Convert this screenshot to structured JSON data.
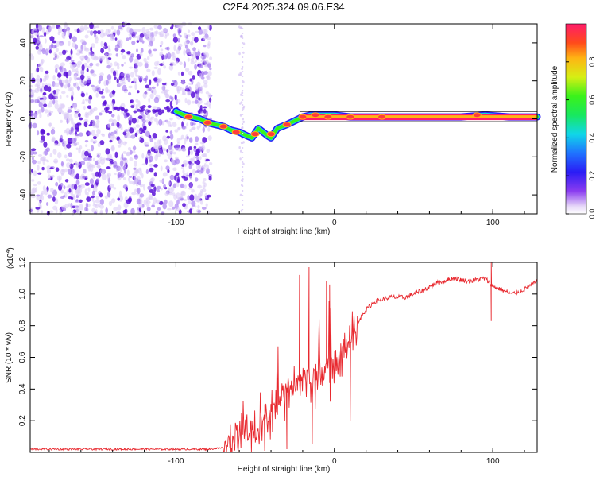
{
  "title": "C2E4.2025.324.09.06.E34",
  "colors": {
    "snr_line": "#e8282e",
    "axis": "#000000",
    "scatter": "#6a1fd8"
  },
  "chart_data": [
    {
      "type": "heatmap",
      "name": "spectrogram",
      "xlabel": "Height of straight line (km)",
      "ylabel": "Frequency (Hz)",
      "xlim": [
        -192,
        128
      ],
      "ylim": [
        -50,
        50
      ],
      "xticks": [
        -100,
        0,
        100
      ],
      "yticks": [
        -40,
        -20,
        0,
        20,
        40
      ],
      "noise_region": [
        -192,
        -78
      ],
      "ridge": [
        [
          -100,
          4
        ],
        [
          -95,
          2
        ],
        [
          -90,
          1
        ],
        [
          -85,
          0
        ],
        [
          -80,
          -2
        ],
        [
          -75,
          -3
        ],
        [
          -70,
          -4
        ],
        [
          -65,
          -6
        ],
        [
          -60,
          -7
        ],
        [
          -55,
          -9
        ],
        [
          -52,
          -10
        ],
        [
          -48,
          -5
        ],
        [
          -45,
          -7
        ],
        [
          -42,
          -9
        ],
        [
          -40,
          -10
        ],
        [
          -36,
          -5
        ],
        [
          -30,
          -3
        ],
        [
          -25,
          -1
        ],
        [
          -20,
          1
        ],
        [
          -15,
          2
        ],
        [
          -10,
          2
        ],
        [
          -5,
          2
        ],
        [
          0,
          2
        ],
        [
          10,
          1
        ],
        [
          20,
          1
        ],
        [
          40,
          1
        ],
        [
          60,
          1
        ],
        [
          80,
          1
        ],
        [
          95,
          2
        ],
        [
          110,
          1
        ],
        [
          128,
          1
        ]
      ],
      "colorbar": {
        "label": "Normalized spectral amplitude",
        "ticks": [
          0.0,
          0.2,
          0.4,
          0.6,
          0.8
        ],
        "tick_labels": [
          "0.0",
          "0.2",
          "0.4",
          "0.6",
          "0.8"
        ],
        "range": [
          0,
          1
        ]
      }
    },
    {
      "type": "line",
      "name": "snr",
      "xlabel": "Height of straight line (km)",
      "ylabel": "SNR (10 * v/v)",
      "y_multiplier": "(x10",
      "y_multiplier_exp": "4",
      "xlim": [
        -192,
        128
      ],
      "ylim": [
        0,
        1.2
      ],
      "xticks": [
        -100,
        0,
        100
      ],
      "yticks": [
        0.2,
        0.4,
        0.6,
        0.8,
        1.0,
        1.2
      ],
      "ytick_labels": [
        "0.2",
        "0.4",
        "0.6",
        "0.8",
        "1.0",
        "1.2"
      ],
      "key_points": [
        [
          -192,
          0.02
        ],
        [
          -80,
          0.02
        ],
        [
          -70,
          0.03
        ],
        [
          -62,
          0.08
        ],
        [
          -58,
          0.14
        ],
        [
          -50,
          0.12
        ],
        [
          -40,
          0.28
        ],
        [
          -30,
          0.38
        ],
        [
          -20,
          0.45
        ],
        [
          -10,
          0.5
        ],
        [
          0,
          0.55
        ],
        [
          10,
          0.7
        ],
        [
          18,
          0.88
        ],
        [
          25,
          0.95
        ],
        [
          35,
          0.98
        ],
        [
          45,
          0.98
        ],
        [
          55,
          1.02
        ],
        [
          65,
          1.07
        ],
        [
          75,
          1.1
        ],
        [
          85,
          1.08
        ],
        [
          95,
          1.1
        ],
        [
          100,
          1.05
        ],
        [
          105,
          1.03
        ],
        [
          112,
          1.0
        ],
        [
          120,
          1.03
        ],
        [
          128,
          1.08
        ]
      ],
      "spikes": [
        [
          -16,
          1.17
        ],
        [
          -14,
          0.05
        ],
        [
          -5,
          1.08
        ],
        [
          -3,
          1.06
        ],
        [
          10,
          0.2
        ],
        [
          -22,
          1.12
        ],
        [
          -30,
          0.02
        ],
        [
          -44,
          0.01
        ],
        [
          99,
          0.83
        ],
        [
          99,
          1.2
        ]
      ]
    }
  ]
}
